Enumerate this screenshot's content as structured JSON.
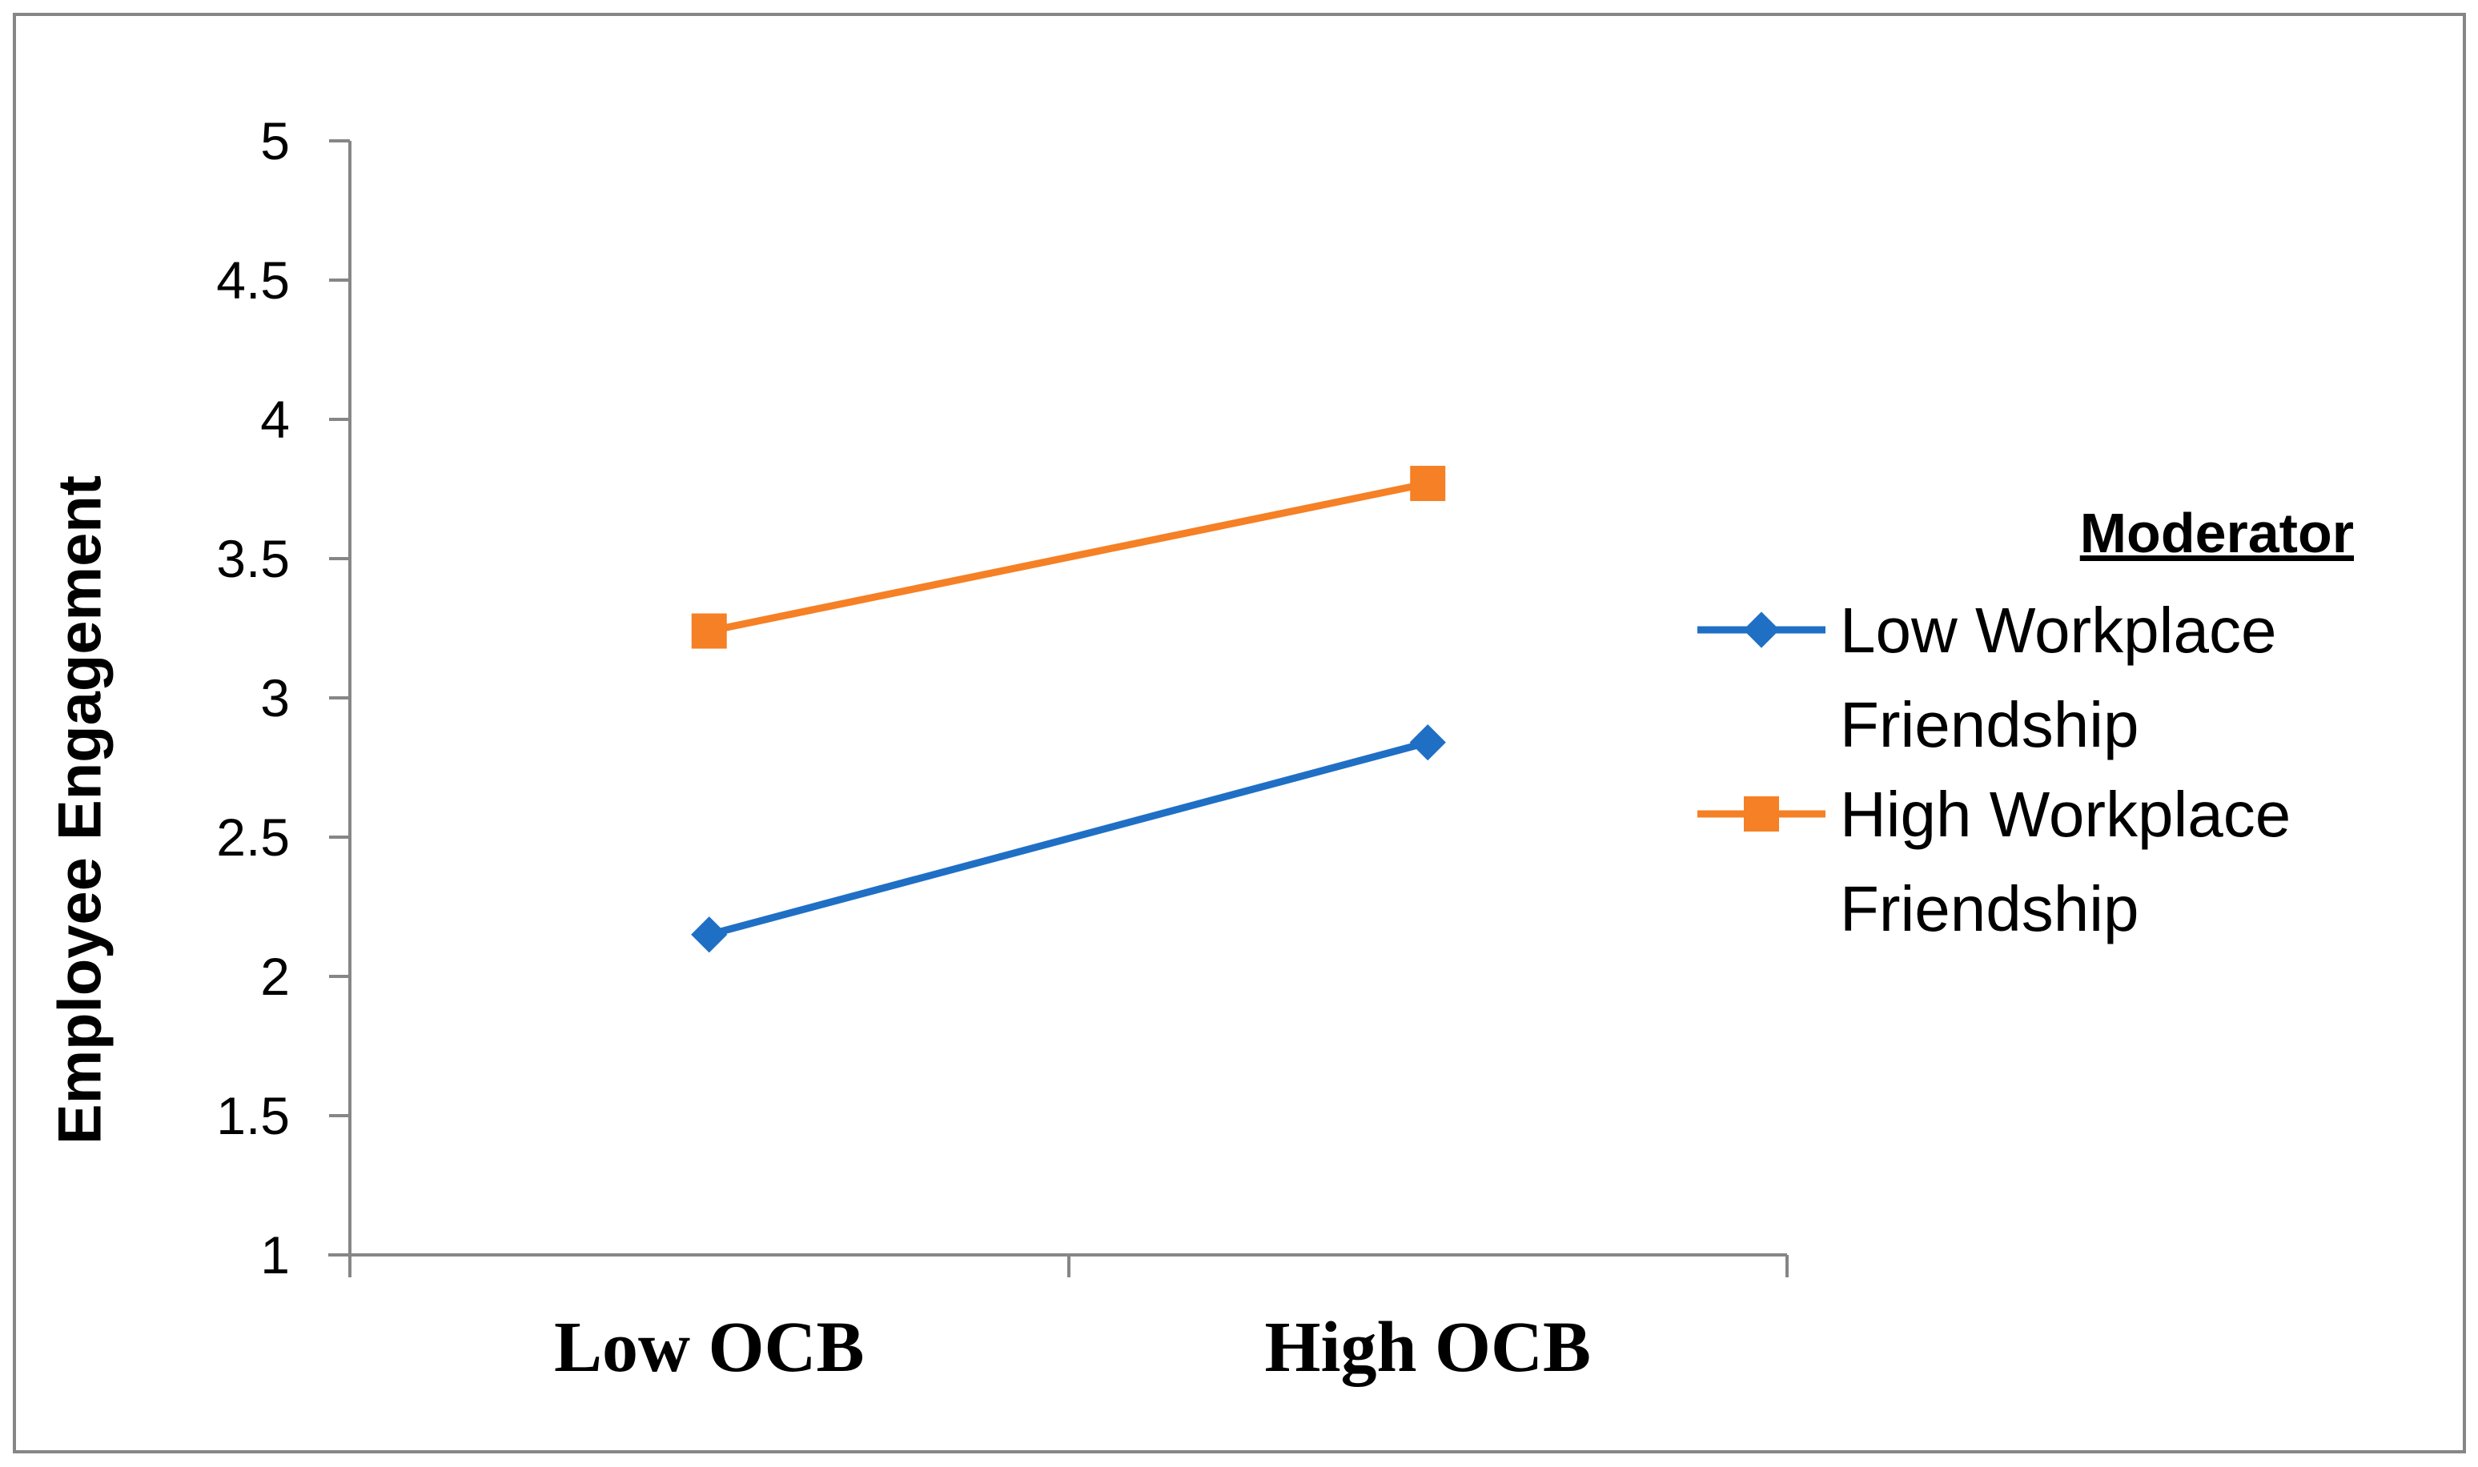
{
  "chart_data": {
    "type": "line",
    "title": "",
    "xlabel": "",
    "ylabel": "Employee Engagement",
    "categories": [
      "Low OCB",
      "High OCB"
    ],
    "ylim": [
      1,
      5
    ],
    "yticks": [
      "1",
      "1.5",
      "2",
      "2.5",
      "3",
      "3.5",
      "4",
      "4.5",
      "5"
    ],
    "grid": false,
    "legend": {
      "title": "Moderator",
      "placement": "right"
    },
    "series": [
      {
        "name": "Low Workplace Friendship",
        "name_lines": [
          "Low Workplace",
          "Friendship"
        ],
        "marker": "diamond",
        "color": "#1F6FC5",
        "values": [
          2.15,
          2.84
        ]
      },
      {
        "name": "High Workplace Friendship",
        "name_lines": [
          "High Workplace",
          "Friendship"
        ],
        "marker": "square",
        "color": "#F58025",
        "values": [
          3.24,
          3.77
        ]
      }
    ]
  }
}
